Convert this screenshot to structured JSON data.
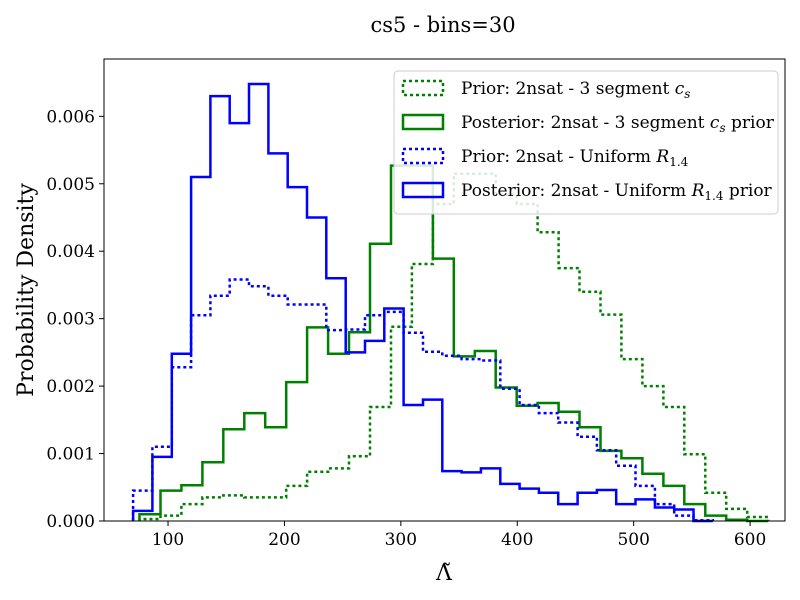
{
  "chart_data": {
    "type": "histogram-step",
    "title": "cs5 - bins=30",
    "xlabel": "Λ̃",
    "ylabel": "Probability Density",
    "xlim": [
      45,
      630
    ],
    "ylim": [
      0,
      0.00685
    ],
    "xticks": [
      100,
      200,
      300,
      400,
      500,
      600
    ],
    "yticks": [
      0.0,
      0.001,
      0.002,
      0.003,
      0.004,
      0.005,
      0.006
    ],
    "ytick_labels": [
      "0.000",
      "0.001",
      "0.002",
      "0.003",
      "0.004",
      "0.005",
      "0.006"
    ],
    "grid": false,
    "legend_position": "top-right",
    "series": [
      {
        "name": "Prior: 2nsat - 3 segment c_s",
        "legend_label": "Prior: 2nsat - 3 segment ",
        "legend_math": "c",
        "legend_sub": "s",
        "legend_suffix": "",
        "color": "#008000",
        "style": "dotted",
        "edges": [
          75.5,
          93.5,
          111.5,
          129.5,
          147.5,
          165.5,
          183.5,
          201.5,
          219.5,
          237.5,
          255.5,
          273.5,
          291.5,
          309.5,
          327.5,
          345.5,
          363.5,
          381.5,
          399.5,
          417.5,
          435.5,
          453.5,
          471.5,
          489.5,
          507.5,
          525.5,
          543.5,
          561.5,
          579.5,
          597.5,
          615.5
        ],
        "values": [
          3e-05,
          8e-05,
          0.00025,
          0.00035,
          0.00038,
          0.00035,
          0.00035,
          0.00052,
          0.00073,
          0.00078,
          0.00096,
          0.00169,
          0.00288,
          0.00381,
          0.0047,
          0.00515,
          0.00515,
          0.00484,
          0.0047,
          0.00428,
          0.00375,
          0.0034,
          0.00306,
          0.0024,
          0.002,
          0.00169,
          0.00099,
          0.00042,
          0.00018,
          6e-05
        ]
      },
      {
        "name": "Posterior: 2nsat - 3 segment c_s prior",
        "legend_label": "Posterior: 2nsat - 3 segment ",
        "legend_math": "c",
        "legend_sub": "s",
        "legend_suffix": " prior",
        "color": "#008000",
        "style": "solid",
        "edges": [
          75.5,
          93.5,
          111.5,
          129.5,
          147.5,
          165.5,
          183.5,
          201.5,
          219.5,
          237.5,
          255.5,
          273.5,
          291.5,
          309.5,
          327.5,
          345.5,
          363.5,
          381.5,
          399.5,
          417.5,
          435.5,
          453.5,
          471.5,
          489.5,
          507.5,
          525.5,
          543.5,
          561.5,
          579.5,
          597.5,
          615.5
        ],
        "values": [
          0.0001,
          0.00045,
          0.00053,
          0.00087,
          0.00136,
          0.0016,
          0.00139,
          0.00206,
          0.00287,
          0.00248,
          0.0028,
          0.00411,
          0.00527,
          0.00527,
          0.00389,
          0.00244,
          0.00252,
          0.00198,
          0.00171,
          0.00175,
          0.00162,
          0.00139,
          0.00104,
          0.00093,
          0.0007,
          0.00052,
          0.00025,
          8e-05,
          2e-05,
          0.0
        ]
      },
      {
        "name": "Prior: 2nsat - Uniform R_1.4",
        "legend_label": "Prior: 2nsat - Uniform ",
        "legend_math": "R",
        "legend_sub": "1.4",
        "legend_suffix": "",
        "color": "#0000ff",
        "style": "dotted",
        "edges": [
          70,
          86.6,
          103.2,
          119.8,
          136.4,
          153.0,
          169.6,
          186.2,
          202.8,
          219.4,
          236.0,
          252.6,
          269.2,
          285.8,
          302.4,
          319.0,
          335.6,
          352.2,
          368.8,
          385.4,
          402.0,
          418.6,
          435.2,
          451.8,
          468.4,
          485.0,
          501.6,
          518.2,
          534.8,
          551.4,
          568.0
        ],
        "values": [
          0.00045,
          0.0011,
          0.00228,
          0.00305,
          0.00334,
          0.00358,
          0.00348,
          0.00334,
          0.00321,
          0.00321,
          0.00283,
          0.00284,
          0.00305,
          0.0031,
          0.00279,
          0.00251,
          0.00245,
          0.0024,
          0.00238,
          0.00196,
          0.00172,
          0.0016,
          0.00146,
          0.00125,
          0.00105,
          0.00082,
          0.00052,
          0.00025,
          8e-05,
          1e-05
        ]
      },
      {
        "name": "Posterior: 2nsat - Uniform R_1.4 prior",
        "legend_label": "Posterior: 2nsat - Uniform ",
        "legend_math": "R",
        "legend_sub": "1.4",
        "legend_suffix": " prior",
        "color": "#0000ff",
        "style": "solid",
        "edges": [
          70,
          86.6,
          103.2,
          119.8,
          136.4,
          153.0,
          169.6,
          186.2,
          202.8,
          219.4,
          236.0,
          252.6,
          269.2,
          285.8,
          302.4,
          319.0,
          335.6,
          352.2,
          368.8,
          385.4,
          402.0,
          418.6,
          435.2,
          451.8,
          468.4,
          485.0,
          501.6,
          518.2,
          534.8,
          551.4,
          568.0
        ],
        "values": [
          0.00015,
          0.00095,
          0.00248,
          0.0051,
          0.0063,
          0.0059,
          0.00648,
          0.00545,
          0.00495,
          0.0045,
          0.0036,
          0.0025,
          0.00267,
          0.00315,
          0.00172,
          0.0018,
          0.00074,
          0.00072,
          0.00078,
          0.00055,
          0.00048,
          0.00042,
          0.00025,
          0.00042,
          0.00046,
          0.00025,
          0.00032,
          0.0002,
          0.00017,
          0.0
        ]
      }
    ]
  }
}
